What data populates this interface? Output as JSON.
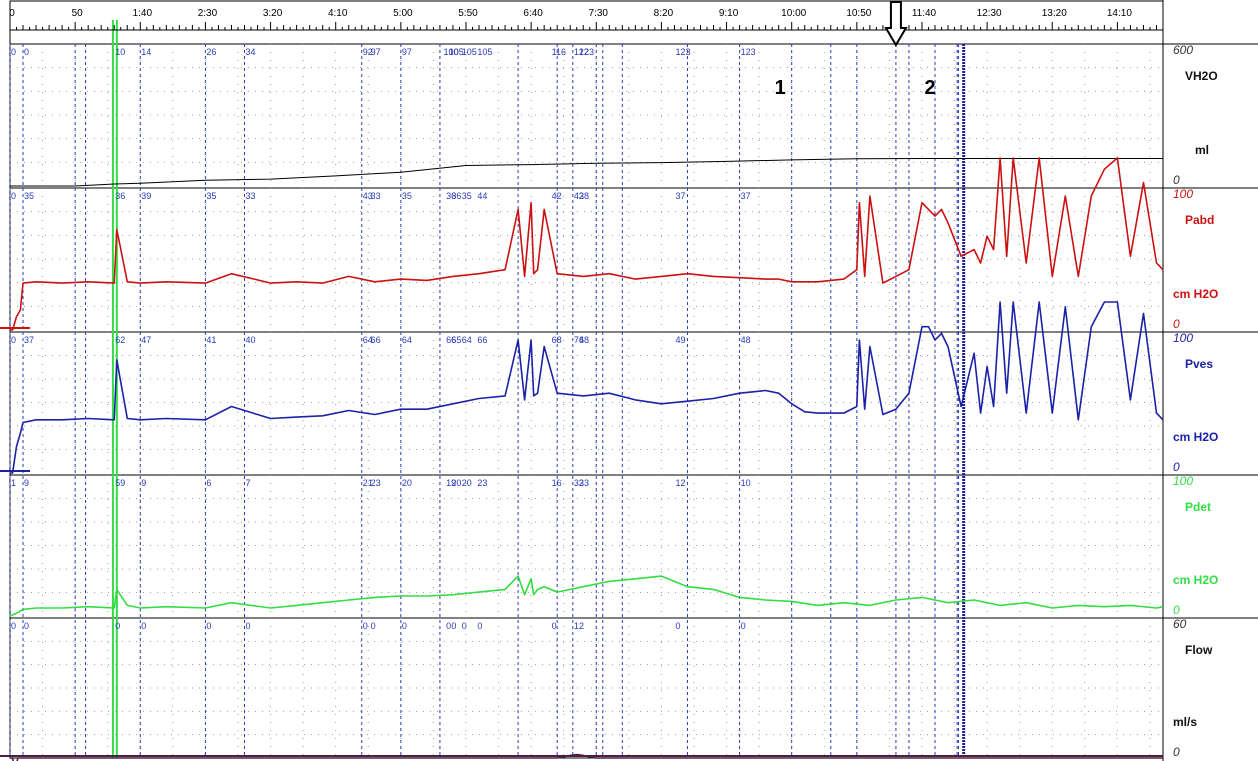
{
  "time_axis": {
    "labels": [
      "0",
      "50",
      "1:40",
      "2:30",
      "3:20",
      "4:10",
      "5:00",
      "5:50",
      "6:40",
      "7:30",
      "8:20",
      "9:10",
      "10:00",
      "10:50",
      "11:40",
      "12:30",
      "13:20",
      "14:10"
    ],
    "label_seconds": [
      0,
      50,
      100,
      150,
      200,
      250,
      300,
      350,
      400,
      450,
      500,
      550,
      600,
      650,
      700,
      750,
      800,
      850
    ],
    "range_seconds": [
      0,
      885
    ]
  },
  "markers": {
    "times": [
      0,
      10,
      50,
      58,
      100,
      150,
      180,
      270,
      300,
      330,
      390,
      420,
      432,
      450,
      455,
      470,
      520,
      560,
      600,
      630,
      650,
      680,
      690,
      710,
      727,
      728
    ],
    "events": [
      {
        "label": "1",
        "time": 590
      },
      {
        "label": "2",
        "time": 705
      }
    ],
    "arrow_time": 680,
    "green_band_time": [
      79,
      82
    ]
  },
  "channels": [
    {
      "name": "VH2O",
      "unit": "ml",
      "max": "600",
      "min": "0",
      "color": "#000000",
      "range": [
        0,
        600
      ],
      "marker_values": [
        "0",
        "0",
        "10",
        "14",
        "26",
        "34",
        "92",
        "97",
        "97",
        "100",
        "105",
        "105",
        "105",
        "116",
        "122",
        "123",
        "123",
        "123"
      ],
      "marker_value_times": [
        0,
        10,
        80,
        100,
        150,
        180,
        270,
        276,
        300,
        332,
        336,
        346,
        358,
        415,
        432,
        436,
        510,
        560
      ],
      "series_time": [
        0,
        50,
        80,
        100,
        150,
        200,
        250,
        300,
        350,
        400,
        450,
        500,
        550,
        600,
        650,
        700,
        750,
        800,
        850,
        885
      ],
      "series_values": [
        0,
        0,
        9,
        12,
        26,
        31,
        45,
        62,
        92,
        96,
        102,
        105,
        110,
        117,
        122,
        123,
        123,
        123,
        123,
        123
      ]
    },
    {
      "name": "Pabd",
      "unit": "cm H2O",
      "max": "100",
      "min": "0",
      "color": "#cc1111",
      "range": [
        0,
        100
      ],
      "marker_values": [
        "0",
        "35",
        "36",
        "39",
        "35",
        "33",
        "43",
        "33",
        "35",
        "36",
        "36",
        "35",
        "44",
        "42",
        "42",
        "38",
        "37",
        "37"
      ],
      "marker_value_times": [
        0,
        10,
        80,
        100,
        150,
        180,
        270,
        276,
        300,
        334,
        338,
        346,
        358,
        415,
        432,
        436,
        510,
        560
      ],
      "series_time": [
        0,
        2,
        5,
        8,
        10,
        20,
        40,
        60,
        80,
        82,
        90,
        100,
        120,
        150,
        170,
        200,
        220,
        240,
        260,
        280,
        300,
        320,
        340,
        360,
        380,
        390,
        395,
        400,
        402,
        405,
        410,
        420,
        440,
        460,
        480,
        500,
        520,
        540,
        560,
        580,
        590,
        600,
        610,
        620,
        630,
        640,
        650,
        652,
        656,
        660,
        670,
        680,
        690,
        700,
        705,
        710,
        715,
        720,
        730,
        740,
        745,
        750,
        755,
        760,
        765,
        770,
        780,
        790,
        800,
        810,
        820,
        830,
        840,
        850,
        860,
        870,
        880,
        885
      ],
      "series_values": [
        0,
        0,
        10,
        15,
        35,
        36,
        35,
        36,
        35,
        75,
        36,
        35,
        36,
        35,
        42,
        35,
        36,
        35,
        40,
        36,
        38,
        37,
        40,
        42,
        45,
        90,
        40,
        95,
        42,
        45,
        90,
        42,
        40,
        42,
        38,
        40,
        42,
        40,
        39,
        38,
        38,
        36,
        36,
        36,
        37,
        38,
        45,
        95,
        40,
        100,
        35,
        40,
        45,
        95,
        90,
        85,
        90,
        80,
        55,
        60,
        50,
        70,
        60,
        130,
        55,
        140,
        50,
        130,
        40,
        100,
        40,
        100,
        120,
        135,
        55,
        110,
        50,
        45
      ]
    },
    {
      "name": "Pves",
      "unit": "cm H2O",
      "max": "100",
      "min": "0",
      "color": "#1b22a8",
      "range": [
        0,
        100
      ],
      "marker_values": [
        "0",
        "37",
        "62",
        "47",
        "41",
        "40",
        "64",
        "66",
        "64",
        "66",
        "65",
        "64",
        "66",
        "68",
        "74",
        "68",
        "49",
        "48"
      ],
      "marker_value_times": [
        0,
        10,
        80,
        100,
        150,
        180,
        270,
        276,
        300,
        334,
        338,
        346,
        358,
        415,
        432,
        436,
        510,
        560
      ],
      "series_time": [
        0,
        2,
        5,
        8,
        10,
        20,
        40,
        60,
        80,
        82,
        90,
        100,
        120,
        150,
        170,
        200,
        220,
        240,
        260,
        280,
        300,
        320,
        340,
        360,
        380,
        390,
        395,
        400,
        402,
        405,
        410,
        420,
        440,
        460,
        480,
        500,
        520,
        540,
        560,
        580,
        590,
        600,
        610,
        620,
        630,
        640,
        650,
        652,
        656,
        660,
        670,
        680,
        690,
        700,
        705,
        710,
        715,
        720,
        730,
        740,
        745,
        750,
        755,
        760,
        765,
        770,
        780,
        790,
        800,
        810,
        820,
        830,
        840,
        850,
        860,
        870,
        880,
        885
      ],
      "series_values": [
        0,
        0,
        20,
        30,
        38,
        40,
        40,
        41,
        40,
        85,
        41,
        40,
        41,
        40,
        50,
        41,
        42,
        43,
        47,
        44,
        48,
        48,
        52,
        56,
        58,
        100,
        55,
        100,
        58,
        60,
        95,
        60,
        58,
        60,
        55,
        52,
        54,
        56,
        60,
        62,
        60,
        52,
        46,
        45,
        45,
        45,
        50,
        100,
        48,
        95,
        44,
        48,
        60,
        110,
        110,
        100,
        105,
        95,
        50,
        90,
        45,
        80,
        50,
        140,
        60,
        145,
        45,
        130,
        45,
        125,
        40,
        110,
        130,
        140,
        55,
        120,
        45,
        40
      ]
    },
    {
      "name": "Pdet",
      "unit": "cm H2O",
      "max": "100",
      "min": "0",
      "color": "#33dd44",
      "range": [
        0,
        100
      ],
      "marker_values": [
        "1",
        "9",
        "59",
        "9",
        "6",
        "7",
        "21",
        "23",
        "20",
        "19",
        "20",
        "20",
        "23",
        "16",
        "32",
        "33",
        "12",
        "10"
      ],
      "marker_value_times": [
        0,
        10,
        80,
        100,
        150,
        180,
        270,
        276,
        300,
        334,
        338,
        346,
        358,
        415,
        432,
        436,
        510,
        560
      ],
      "series_time": [
        0,
        5,
        10,
        20,
        40,
        60,
        80,
        82,
        90,
        100,
        120,
        150,
        170,
        200,
        220,
        240,
        260,
        280,
        300,
        320,
        340,
        360,
        380,
        390,
        395,
        400,
        402,
        405,
        410,
        420,
        440,
        460,
        480,
        500,
        520,
        540,
        560,
        580,
        600,
        620,
        640,
        660,
        680,
        700,
        720,
        740,
        760,
        780,
        800,
        820,
        840,
        860,
        880,
        885
      ],
      "series_values": [
        0,
        2,
        5,
        6,
        6,
        7,
        6,
        20,
        8,
        6,
        7,
        6,
        10,
        6,
        8,
        10,
        12,
        14,
        15,
        15,
        16,
        18,
        20,
        30,
        16,
        28,
        16,
        20,
        22,
        18,
        22,
        26,
        28,
        30,
        22,
        20,
        14,
        12,
        11,
        8,
        10,
        8,
        12,
        14,
        10,
        12,
        8,
        10,
        6,
        8,
        7,
        8,
        6,
        7
      ]
    },
    {
      "name": "Flow",
      "unit": "ml/s",
      "max": "60",
      "min": "0",
      "color": "#4a2040",
      "range": [
        0,
        60
      ],
      "marker_values": [
        "0",
        "0",
        "0",
        "0",
        "0",
        "0",
        "0",
        "0",
        "0",
        "0",
        "0",
        "0",
        "0",
        "0",
        "1",
        "2",
        "0",
        "0"
      ],
      "marker_value_times": [
        0,
        10,
        80,
        100,
        150,
        180,
        270,
        276,
        300,
        334,
        338,
        346,
        358,
        415,
        432,
        436,
        510,
        560
      ],
      "series_time": [
        0,
        2,
        4,
        6,
        8,
        10,
        20,
        100,
        200,
        300,
        400,
        420,
        425,
        430,
        435,
        440,
        445,
        450,
        500,
        600,
        700,
        800,
        885
      ],
      "series_values": [
        0,
        0,
        -6,
        0,
        0,
        0,
        0,
        0,
        0,
        0,
        0,
        0,
        0.5,
        1.2,
        1.6,
        1.2,
        0.5,
        0,
        0,
        0,
        0,
        0,
        0
      ]
    }
  ],
  "chart_data": {
    "type": "line",
    "xlabel": "",
    "ylabel": "",
    "x_range": [
      0,
      885
    ],
    "grid": true,
    "legend": "right",
    "series": [
      {
        "name": "VH2O",
        "unit": "ml",
        "ylim": [
          0,
          600
        ]
      },
      {
        "name": "Pabd",
        "unit": "cm H2O",
        "ylim": [
          0,
          100
        ]
      },
      {
        "name": "Pves",
        "unit": "cm H2O",
        "ylim": [
          0,
          100
        ]
      },
      {
        "name": "Pdet",
        "unit": "cm H2O",
        "ylim": [
          0,
          100
        ]
      },
      {
        "name": "Flow",
        "unit": "ml/s",
        "ylim": [
          0,
          60
        ]
      }
    ]
  }
}
